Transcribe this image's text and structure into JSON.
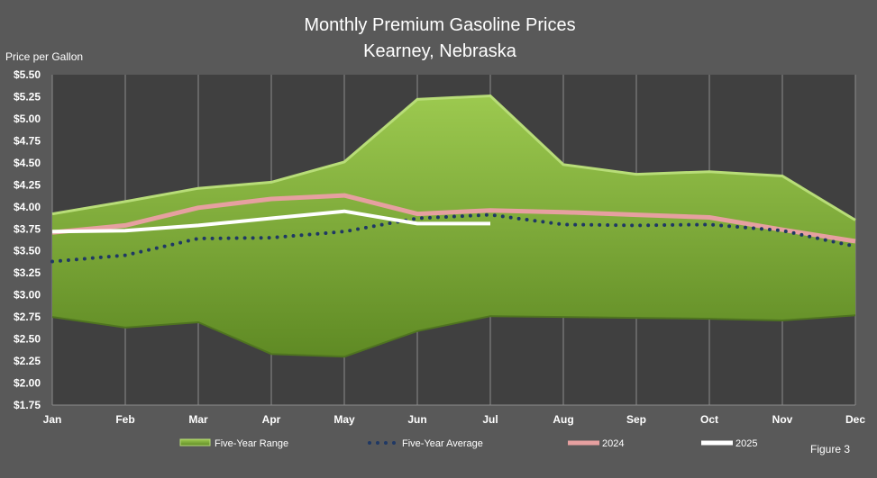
{
  "chart_data": {
    "type": "area",
    "title": "Monthly Premium Gasoline Prices",
    "subtitle": "Kearney, Nebraska",
    "ylabel": "Price per Gallon",
    "xlabel": "",
    "categories": [
      "Jan",
      "Feb",
      "Mar",
      "Apr",
      "May",
      "Jun",
      "Jul",
      "Aug",
      "Sep",
      "Oct",
      "Nov",
      "Dec"
    ],
    "y_tick_labels": [
      "$1.75",
      "$2.00",
      "$2.25",
      "$2.50",
      "$2.75",
      "$3.00",
      "$3.25",
      "$3.50",
      "$3.75",
      "$4.00",
      "$4.25",
      "$4.50",
      "$4.75",
      "$5.00",
      "$5.25",
      "$5.50"
    ],
    "ylim": [
      1.75,
      5.5
    ],
    "grid": "vertical",
    "legend_position": "bottom",
    "range": {
      "name": "Five-Year Range",
      "low": [
        2.75,
        2.63,
        2.69,
        2.33,
        2.3,
        2.59,
        2.76,
        2.75,
        2.74,
        2.73,
        2.71,
        2.77
      ],
      "high": [
        3.92,
        4.06,
        4.21,
        4.28,
        4.51,
        5.22,
        5.26,
        4.48,
        4.37,
        4.4,
        4.35,
        3.85
      ],
      "color": "#7fab3a"
    },
    "series": [
      {
        "name": "Five-Year Average",
        "style": "dotted",
        "color": "#1f3864",
        "values": [
          3.38,
          3.45,
          3.64,
          3.65,
          3.72,
          3.87,
          3.91,
          3.8,
          3.79,
          3.8,
          3.73,
          3.55
        ]
      },
      {
        "name": "2024",
        "style": "solid",
        "color": "#e6a0a0",
        "values": [
          3.71,
          3.79,
          3.99,
          4.09,
          4.13,
          3.92,
          3.96,
          3.94,
          3.91,
          3.88,
          3.74,
          3.61
        ]
      },
      {
        "name": "2025",
        "style": "solid",
        "color": "#ffffff",
        "values": [
          3.72,
          3.73,
          3.79,
          3.87,
          3.95,
          3.81,
          3.81,
          null,
          null,
          null,
          null,
          null
        ]
      }
    ],
    "annotation": "Figure 3"
  }
}
